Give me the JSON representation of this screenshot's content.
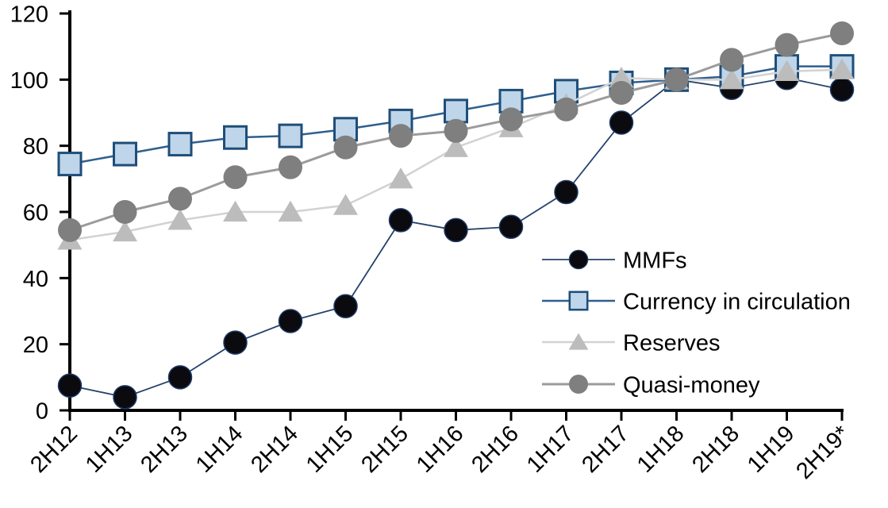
{
  "chart_data": {
    "type": "line",
    "title": "",
    "xlabel": "",
    "ylabel": "",
    "ylim": [
      0,
      120
    ],
    "y_ticks": [
      0,
      20,
      40,
      60,
      80,
      100,
      120
    ],
    "grid": false,
    "legend_position": "inside-right",
    "axis_color": "#000000",
    "categories": [
      "2H12",
      "1H13",
      "2H13",
      "1H14",
      "2H14",
      "1H15",
      "2H15",
      "1H16",
      "2H16",
      "1H17",
      "2H17",
      "1H18",
      "2H18",
      "1H19",
      "2H19*"
    ],
    "series": [
      {
        "name": "MMFs",
        "marker": "circle",
        "marker_size": 29,
        "marker_fill": "#0a0a0f",
        "marker_stroke": "#1f3864",
        "marker_stroke_width": 1.5,
        "line_color": "#24426b",
        "line_width": 1.8,
        "values": [
          7.5,
          4,
          10,
          20.5,
          27,
          31.5,
          57.5,
          54.5,
          55.5,
          66,
          87,
          100,
          97.5,
          100.5,
          97
        ]
      },
      {
        "name": "Currency in circulation",
        "marker": "square",
        "marker_size": 28,
        "marker_fill": "#bed5ea",
        "marker_stroke": "#1f4e79",
        "marker_stroke_width": 3,
        "line_color": "#2f5f8f",
        "line_width": 2.5,
        "values": [
          74.5,
          77.5,
          80.5,
          82.5,
          83,
          85,
          87.5,
          90.5,
          93.5,
          96.5,
          99,
          100,
          101,
          104,
          104
        ]
      },
      {
        "name": "Reserves",
        "marker": "triangle",
        "marker_size": 31,
        "marker_fill": "#bcbcbc",
        "marker_stroke": "none",
        "marker_stroke_width": 0,
        "line_color": "#d2d2d2",
        "line_width": 2.5,
        "values": [
          51.5,
          54,
          57.5,
          60,
          60,
          62,
          70,
          79.5,
          85.5,
          92.5,
          100.5,
          100,
          100,
          102.5,
          103
        ]
      },
      {
        "name": "Quasi-money",
        "marker": "circle",
        "marker_size": 30,
        "marker_fill": "#7f7f7f",
        "marker_stroke": "none",
        "marker_stroke_width": 0,
        "line_color": "#9b9b9b",
        "line_width": 3,
        "values": [
          54.5,
          60,
          64,
          70.5,
          73.5,
          79.5,
          83,
          84.5,
          88,
          91,
          96,
          100,
          106,
          110.5,
          114
        ]
      }
    ],
    "legend": [
      "MMFs",
      "Currency in circulation",
      "Reserves",
      "Quasi-money"
    ]
  }
}
